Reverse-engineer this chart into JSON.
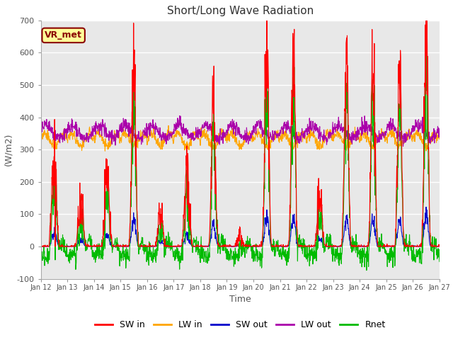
{
  "title": "Short/Long Wave Radiation",
  "xlabel": "Time",
  "ylabel": "(W/m2)",
  "ylim": [
    -100,
    700
  ],
  "background_color": "#e8e8e8",
  "label_color": "#555555",
  "annotation_text": "VR_met",
  "annotation_bg": "#ffff99",
  "annotation_border": "#8B0000",
  "colors": {
    "SW_in": "#ff0000",
    "LW_in": "#ffa500",
    "SW_out": "#0000cc",
    "LW_out": "#aa00aa",
    "Rnet": "#00bb00"
  },
  "legend_labels": [
    "SW in",
    "LW in",
    "SW out",
    "LW out",
    "Rnet"
  ],
  "x_tick_labels": [
    "Jan 12",
    "Jan 13",
    "Jan 14",
    "Jan 15",
    "Jan 16",
    "Jan 17",
    "Jan 18",
    "Jan 19",
    "Jan 20",
    "Jan 21",
    "Jan 22",
    "Jan 23",
    "Jan 24",
    "Jan 25",
    "Jan 26",
    "Jan 27"
  ],
  "yticks": [
    -100,
    0,
    100,
    200,
    300,
    400,
    500,
    600,
    700
  ],
  "n_points": 1440,
  "days": 15,
  "seed": 42
}
